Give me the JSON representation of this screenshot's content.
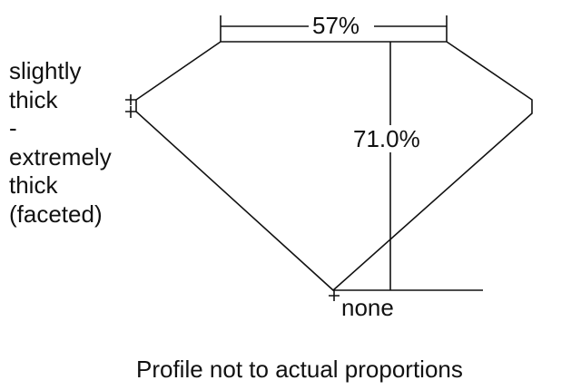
{
  "girdle_label": [
    "slightly",
    "thick",
    "-",
    "extremely",
    "thick",
    "(faceted)"
  ],
  "table_percent": "57%",
  "depth_percent": "71.0%",
  "culet_label": "none",
  "caption": "Profile not to actual proportions",
  "colors": {
    "line": "#111111",
    "background": "#ffffff"
  }
}
